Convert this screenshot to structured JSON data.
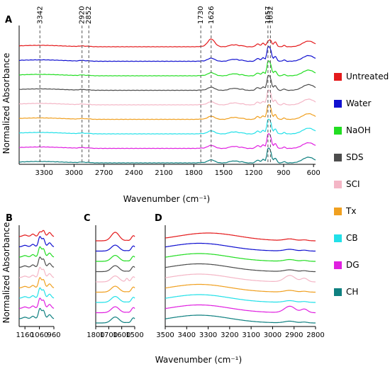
{
  "chart_data": [
    {
      "panel": "A",
      "type": "line",
      "xlabel": "Wavenumber (cm⁻¹)",
      "ylabel": "Normalized Absorbance",
      "xlim": [
        3550,
        580
      ],
      "x_reversed": true,
      "xticks": [
        3300,
        3000,
        2700,
        2400,
        2100,
        1800,
        1500,
        1200,
        900,
        600
      ],
      "peak_markers": [
        3342,
        2920,
        2852,
        1730,
        1626,
        1057,
        1032
      ]
    },
    {
      "panel": "B",
      "type": "line",
      "xlim": [
        1200,
        960
      ],
      "x_reversed": true,
      "xticks": [
        1160,
        1060,
        960
      ]
    },
    {
      "panel": "C",
      "type": "line",
      "xlim": [
        1800,
        1500
      ],
      "x_reversed": true,
      "xticks": [
        1800,
        1700,
        1600,
        1500
      ]
    },
    {
      "panel": "D",
      "type": "line",
      "xlim": [
        3500,
        2800
      ],
      "x_reversed": true,
      "xticks": [
        3500,
        3400,
        3300,
        3200,
        3100,
        3000,
        2900,
        2800
      ]
    }
  ],
  "bottom_xlabel": "Wavenumber (cm⁻¹)",
  "bottom_ylabel": "Normalized Absorbance",
  "legend": [
    {
      "name": "Untreated",
      "color": "#e41a1c"
    },
    {
      "name": "Water",
      "color": "#1010d0"
    },
    {
      "name": "NaOH",
      "color": "#22dd22"
    },
    {
      "name": "SDS",
      "color": "#4d4d4d"
    },
    {
      "name": "SCI",
      "color": "#f4b6c6"
    },
    {
      "name": "Tx",
      "color": "#f0a020"
    },
    {
      "name": "CB",
      "color": "#22e0e8"
    },
    {
      "name": "DG",
      "color": "#e020e0"
    },
    {
      "name": "CH",
      "color": "#0f8080"
    }
  ]
}
